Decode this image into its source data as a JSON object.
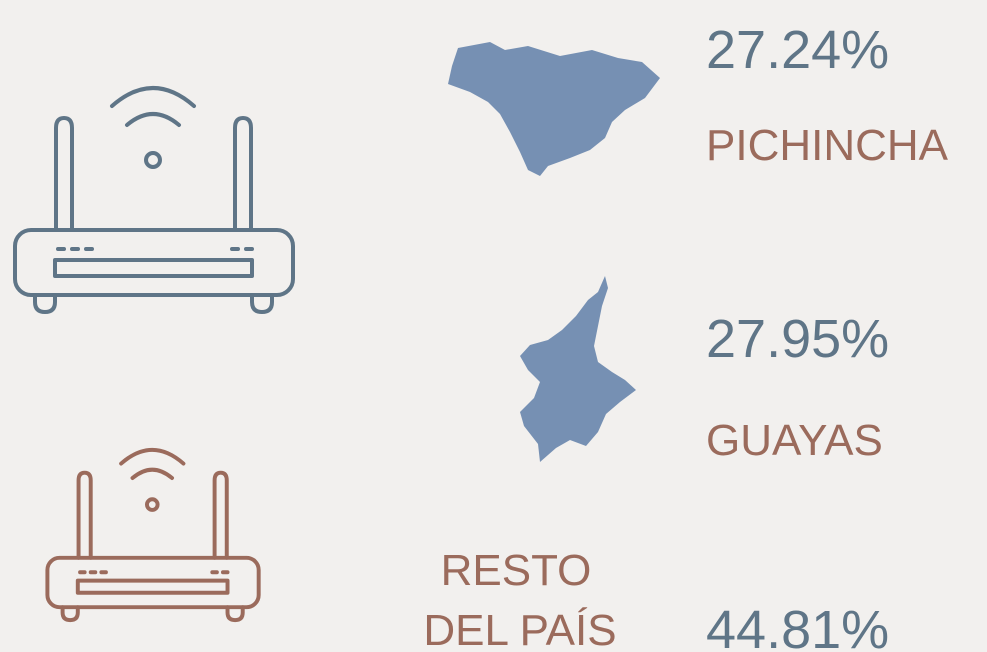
{
  "regions": [
    {
      "percent": "27.24%",
      "label": "PICHINCHA"
    },
    {
      "percent": "27.95%",
      "label": "GUAYAS"
    },
    {
      "percent": "44.81%",
      "label_lines": [
        "RESTO",
        "DEL PAÍS"
      ]
    }
  ]
}
